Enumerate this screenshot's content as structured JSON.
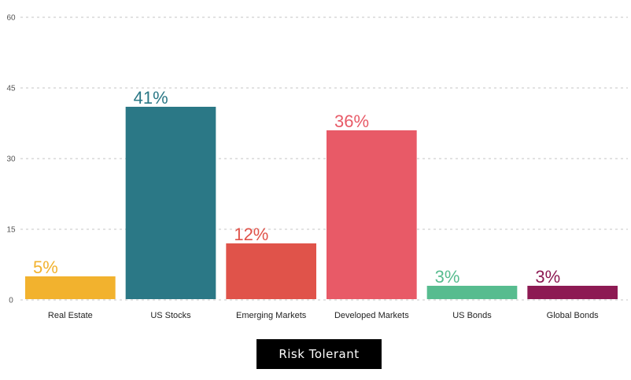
{
  "chart_data": {
    "type": "bar",
    "categories": [
      "Real Estate",
      "US Stocks",
      "Emerging Markets",
      "Developed Markets",
      "US Bonds",
      "Global Bonds"
    ],
    "values": [
      5,
      41,
      12,
      36,
      3,
      3
    ],
    "data_labels": [
      "5%",
      "41%",
      "12%",
      "36%",
      "3%",
      "3%"
    ],
    "colors": [
      "#f2b22e",
      "#2b7886",
      "#e0534a",
      "#e85a67",
      "#57bc8f",
      "#8d1a53"
    ],
    "title": "",
    "xlabel": "",
    "ylabel": "",
    "ylim": [
      0,
      60
    ],
    "yticks": [
      0,
      15,
      30,
      45,
      60
    ],
    "ytick_labels": [
      "0",
      "15",
      "30",
      "45",
      "60"
    ],
    "grid": true,
    "legend": false
  },
  "profile_button": {
    "label": "Risk Tolerant"
  }
}
